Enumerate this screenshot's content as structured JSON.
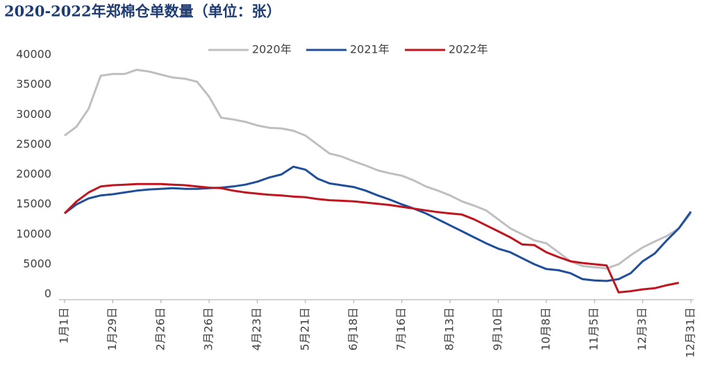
{
  "chart_data": {
    "type": "line",
    "title": "2020-2022年郑棉仓单数量（单位：张）",
    "categories": [
      "1月1日",
      null,
      null,
      null,
      "1月29日",
      null,
      null,
      null,
      "2月26日",
      null,
      null,
      null,
      "3月26日",
      null,
      null,
      null,
      "4月23日",
      null,
      null,
      null,
      "5月21日",
      null,
      null,
      null,
      "6月18日",
      null,
      null,
      null,
      "7月16日",
      null,
      null,
      null,
      "8月13日",
      null,
      null,
      null,
      "9月10日",
      null,
      null,
      null,
      "10月8日",
      null,
      null,
      null,
      "11月5日",
      null,
      null,
      null,
      "12月3日",
      null,
      null,
      null,
      "12月31日"
    ],
    "series": [
      {
        "name": "2020年",
        "color": "#bfbfbf",
        "values": [
          26500,
          28000,
          31000,
          36500,
          36800,
          36800,
          37500,
          37200,
          36700,
          36200,
          36000,
          35500,
          33000,
          29500,
          29200,
          28800,
          28200,
          27800,
          27700,
          27300,
          26500,
          25000,
          23500,
          23000,
          22200,
          21500,
          20700,
          20200,
          19800,
          19000,
          18000,
          17300,
          16500,
          15500,
          14800,
          14000,
          12500,
          11000,
          10000,
          9000,
          8500,
          7000,
          5500,
          4700,
          4500,
          4300,
          5000,
          6500,
          7800,
          8800,
          9700,
          11000,
          13500
        ]
      },
      {
        "name": "2021年",
        "color": "#1f4e9a",
        "values": [
          13500,
          15000,
          16000,
          16500,
          16700,
          17000,
          17300,
          17500,
          17600,
          17700,
          17600,
          17600,
          17700,
          17800,
          18000,
          18300,
          18800,
          19500,
          20000,
          21300,
          20800,
          19300,
          18500,
          18200,
          17900,
          17300,
          16500,
          15800,
          15000,
          14300,
          13500,
          12500,
          11500,
          10500,
          9500,
          8500,
          7600,
          7000,
          6000,
          5000,
          4200,
          4000,
          3500,
          2500,
          2300,
          2200,
          2500,
          3500,
          5500,
          6800,
          9000,
          11000,
          13800
        ]
      },
      {
        "name": "2022年",
        "color": "#c0141e",
        "values": [
          13500,
          15500,
          17000,
          18000,
          18200,
          18300,
          18400,
          18400,
          18400,
          18300,
          18200,
          18000,
          17800,
          17700,
          17300,
          17000,
          16800,
          16600,
          16500,
          16300,
          16200,
          15900,
          15700,
          15600,
          15500,
          15300,
          15100,
          14900,
          14600,
          14300,
          14000,
          13700,
          13500,
          13300,
          12500,
          11500,
          10500,
          9500,
          8300,
          8200,
          7000,
          6200,
          5500,
          5200,
          5000,
          4800,
          300,
          500,
          800,
          1000,
          1500,
          1900,
          null
        ]
      }
    ],
    "ylim": [
      0,
      40000
    ],
    "yticks": [
      0,
      5000,
      10000,
      15000,
      20000,
      25000,
      30000,
      35000,
      40000
    ],
    "legend": "top"
  }
}
